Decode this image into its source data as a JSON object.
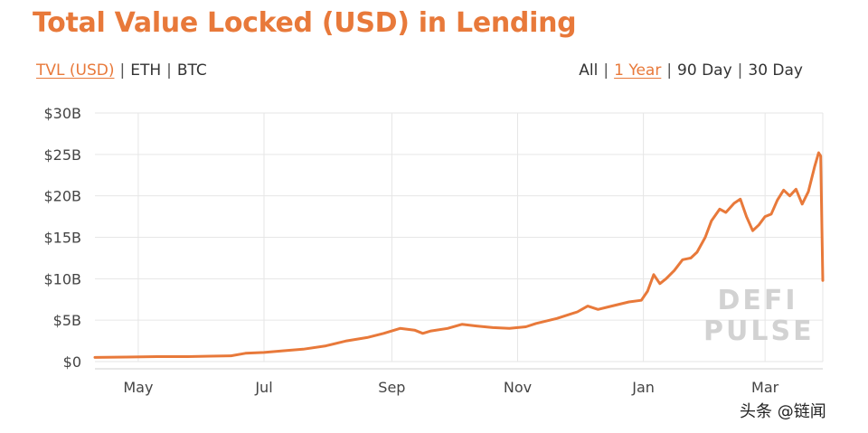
{
  "header": {
    "title": "Total Value Locked (USD) in Lending"
  },
  "unit_toggle": {
    "options": [
      "TVL (USD)",
      "ETH",
      "BTC"
    ],
    "active": "TVL (USD)"
  },
  "range_toggle": {
    "options": [
      "All",
      "1 Year",
      "90 Day",
      "30 Day"
    ],
    "active": "1 Year"
  },
  "watermark": {
    "line1": "DEFI",
    "line2": "PULSE"
  },
  "credit": "头条 @链闻",
  "colors": {
    "accent": "#e8793a",
    "line": "#e8793a",
    "grid": "#e6e6e6"
  },
  "chart_data": {
    "type": "line",
    "title": "Total Value Locked (USD) in Lending",
    "xlabel": "",
    "ylabel": "",
    "x_type": "date",
    "xlim": [
      "2020-04-10",
      "2021-03-29"
    ],
    "ylim": [
      0,
      30
    ],
    "y_unit": "billion USD",
    "yticks": [
      0,
      5,
      10,
      15,
      20,
      25,
      30
    ],
    "ytick_labels": [
      "$0",
      "$5B",
      "$10B",
      "$15B",
      "$20B",
      "$25B",
      "$30B"
    ],
    "xtick_labels": [
      "May",
      "Jul",
      "Sep",
      "Nov",
      "Jan",
      "Mar"
    ],
    "xtick_dates": [
      "2020-05-01",
      "2020-07-01",
      "2020-09-01",
      "2020-11-01",
      "2021-01-01",
      "2021-03-01"
    ],
    "grid": true,
    "legend": "none",
    "series": [
      {
        "points": [
          [
            "2020-04-10",
            0.5
          ],
          [
            "2020-04-25",
            0.55
          ],
          [
            "2020-05-10",
            0.6
          ],
          [
            "2020-05-25",
            0.6
          ],
          [
            "2020-06-05",
            0.65
          ],
          [
            "2020-06-15",
            0.7
          ],
          [
            "2020-06-22",
            1.0
          ],
          [
            "2020-07-01",
            1.1
          ],
          [
            "2020-07-10",
            1.3
          ],
          [
            "2020-07-20",
            1.5
          ],
          [
            "2020-07-31",
            1.9
          ],
          [
            "2020-08-10",
            2.5
          ],
          [
            "2020-08-20",
            2.9
          ],
          [
            "2020-08-28",
            3.4
          ],
          [
            "2020-09-05",
            4.0
          ],
          [
            "2020-09-12",
            3.8
          ],
          [
            "2020-09-16",
            3.4
          ],
          [
            "2020-09-20",
            3.7
          ],
          [
            "2020-09-28",
            4.0
          ],
          [
            "2020-10-05",
            4.5
          ],
          [
            "2020-10-12",
            4.3
          ],
          [
            "2020-10-20",
            4.1
          ],
          [
            "2020-10-28",
            4.0
          ],
          [
            "2020-11-05",
            4.2
          ],
          [
            "2020-11-10",
            4.6
          ],
          [
            "2020-11-20",
            5.2
          ],
          [
            "2020-11-30",
            6.0
          ],
          [
            "2020-12-05",
            6.7
          ],
          [
            "2020-12-10",
            6.3
          ],
          [
            "2020-12-15",
            6.6
          ],
          [
            "2020-12-25",
            7.2
          ],
          [
            "2020-12-31",
            7.4
          ],
          [
            "2021-01-03",
            8.5
          ],
          [
            "2021-01-06",
            10.5
          ],
          [
            "2021-01-09",
            9.4
          ],
          [
            "2021-01-12",
            10.0
          ],
          [
            "2021-01-16",
            11.0
          ],
          [
            "2021-01-20",
            12.3
          ],
          [
            "2021-01-24",
            12.5
          ],
          [
            "2021-01-27",
            13.2
          ],
          [
            "2021-01-31",
            15.0
          ],
          [
            "2021-02-03",
            17.0
          ],
          [
            "2021-02-07",
            18.4
          ],
          [
            "2021-02-10",
            18.0
          ],
          [
            "2021-02-14",
            19.1
          ],
          [
            "2021-02-17",
            19.6
          ],
          [
            "2021-02-20",
            17.5
          ],
          [
            "2021-02-23",
            15.8
          ],
          [
            "2021-02-26",
            16.5
          ],
          [
            "2021-03-01",
            17.5
          ],
          [
            "2021-03-04",
            17.8
          ],
          [
            "2021-03-07",
            19.5
          ],
          [
            "2021-03-10",
            20.7
          ],
          [
            "2021-03-13",
            20.0
          ],
          [
            "2021-03-16",
            20.8
          ],
          [
            "2021-03-19",
            19.0
          ],
          [
            "2021-03-22",
            20.5
          ],
          [
            "2021-03-25",
            23.5
          ],
          [
            "2021-03-27",
            25.2
          ],
          [
            "2021-03-28",
            24.8
          ],
          [
            "2021-03-29",
            9.8
          ]
        ]
      }
    ]
  }
}
